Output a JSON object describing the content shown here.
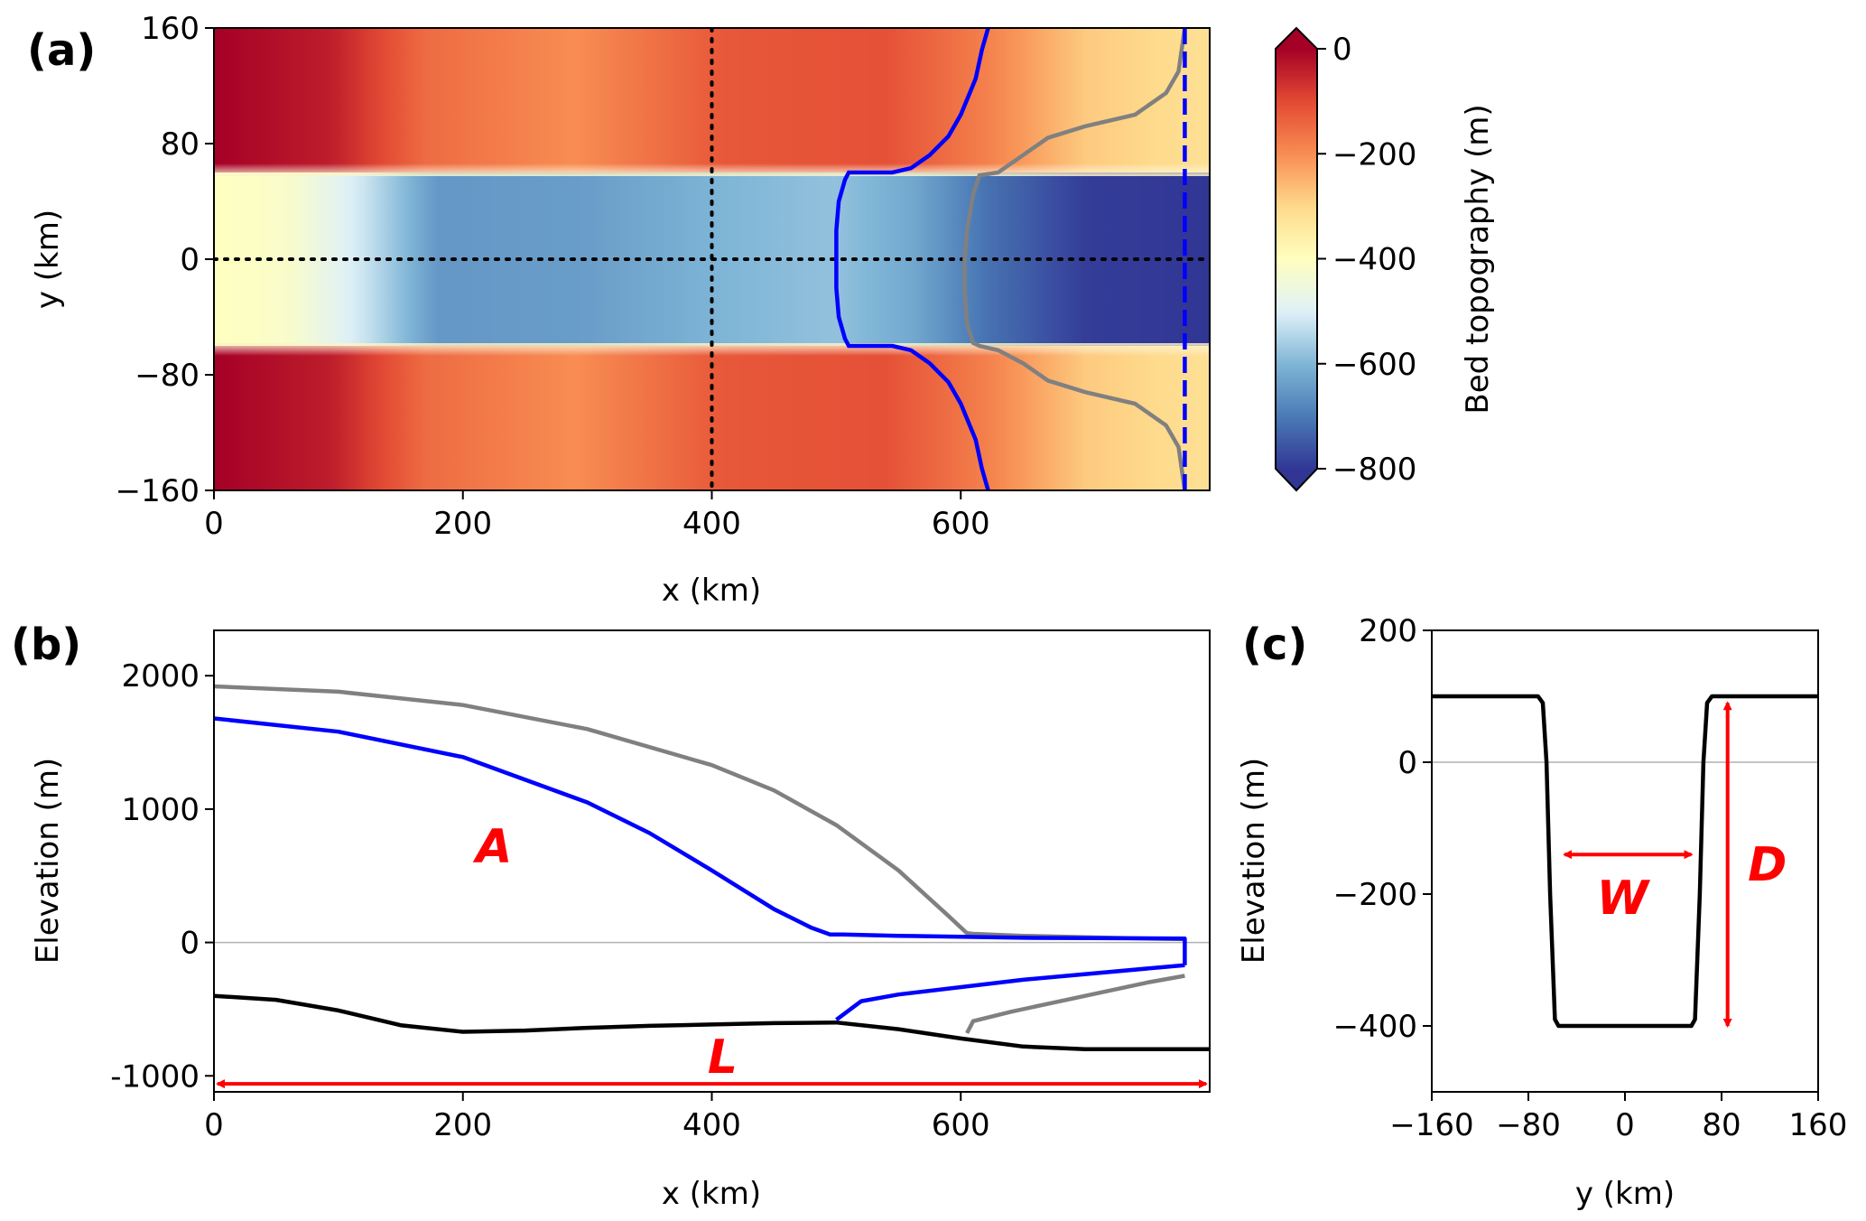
{
  "colorscale": {
    "stops": [
      {
        "v": 0,
        "c": "#a50026"
      },
      {
        "v": -100,
        "c": "#e34a33"
      },
      {
        "v": -200,
        "c": "#f88d52"
      },
      {
        "v": -300,
        "c": "#fed98b"
      },
      {
        "v": -400,
        "c": "#ffffbf"
      },
      {
        "v": -500,
        "c": "#dff1f8"
      },
      {
        "v": -600,
        "c": "#7fb5d6"
      },
      {
        "v": -700,
        "c": "#4a7ab5"
      },
      {
        "v": -800,
        "c": "#313695"
      }
    ],
    "ticks": [
      "0",
      "−200",
      "−400",
      "−600",
      "−800"
    ],
    "tick_values": [
      0,
      -200,
      -400,
      -600,
      -800
    ],
    "label": "Bed topography (m)",
    "range": [
      -800,
      0
    ]
  },
  "chart_data": [
    {
      "panel_label": "(a)",
      "type": "heatmap",
      "xlabel": "x (km)",
      "ylabel": "y (km)",
      "xlim": [
        0,
        800
      ],
      "ylim": [
        -160,
        160
      ],
      "xticks": [
        "0",
        "200",
        "400",
        "600"
      ],
      "xtick_values": [
        0,
        200,
        400,
        600
      ],
      "yticks": [
        "160",
        "80",
        "0",
        "−80",
        "−160"
      ],
      "ytick_values": [
        160,
        80,
        0,
        -80,
        -160
      ],
      "trough_half_width": 60,
      "side_bed": {
        "x": [
          0,
          95,
          170,
          290,
          410,
          540,
          620,
          700,
          800
        ],
        "z": [
          0,
          -40,
          -150,
          -200,
          -120,
          -110,
          -180,
          -280,
          -320
        ]
      },
      "trough_bed": {
        "x": [
          0,
          60,
          120,
          180,
          300,
          410,
          500,
          560,
          620,
          700,
          800
        ],
        "z": [
          -400,
          -420,
          -520,
          -650,
          -640,
          -600,
          -580,
          -620,
          -710,
          -790,
          -800
        ]
      },
      "blue_line": {
        "x": [
          622,
          617,
          612,
          600,
          590,
          575,
          560,
          545,
          520,
          510,
          507,
          502,
          500,
          500,
          500,
          502,
          507,
          510,
          520,
          545,
          560,
          575,
          590,
          600,
          612,
          617,
          622
        ],
        "y": [
          160,
          145,
          125,
          100,
          85,
          72,
          63,
          60,
          60,
          60,
          55,
          40,
          20,
          0,
          -20,
          -40,
          -55,
          -60,
          -60,
          -60,
          -63,
          -72,
          -85,
          -100,
          -125,
          -145,
          -160
        ]
      },
      "gray_line": {
        "x": [
          780,
          775,
          765,
          740,
          700,
          670,
          650,
          630,
          615,
          610,
          605,
          603,
          603,
          605,
          610,
          615,
          630,
          650,
          670,
          700,
          740,
          765,
          775,
          780
        ],
        "y": [
          160,
          130,
          115,
          100,
          92,
          84,
          72,
          60,
          58,
          45,
          20,
          0,
          -20,
          -45,
          -58,
          -60,
          -63,
          -72,
          -84,
          -92,
          -100,
          -115,
          -130,
          -160
        ]
      },
      "dashed_blue_x": 780,
      "dotted_x": 400,
      "dotted_y": 0
    },
    {
      "panel_label": "(b)",
      "type": "line",
      "xlabel": "x (km)",
      "ylabel": "Elevation (m)",
      "xlim": [
        0,
        800
      ],
      "ylim": [
        -1120,
        2340
      ],
      "xticks": [
        "0",
        "200",
        "400",
        "600"
      ],
      "xtick_values": [
        0,
        200,
        400,
        600
      ],
      "yticks": [
        "2000",
        "1000",
        "0",
        "-1000"
      ],
      "ytick_values": [
        2000,
        1000,
        0,
        -1000
      ],
      "series": [
        {
          "color": "#000000",
          "x": [
            0,
            50,
            100,
            150,
            200,
            250,
            300,
            350,
            400,
            450,
            500,
            550,
            600,
            650,
            700,
            750,
            800
          ],
          "y": [
            -400,
            -430,
            -510,
            -620,
            -670,
            -660,
            -640,
            -625,
            -615,
            -605,
            -600,
            -650,
            -720,
            -780,
            -800,
            -800,
            -800
          ]
        },
        {
          "color": "#808080",
          "x": [
            0,
            100,
            200,
            300,
            400,
            450,
            500,
            550,
            590,
            605,
            610,
            650,
            700,
            750,
            780
          ],
          "y": [
            1920,
            1880,
            1780,
            1600,
            1330,
            1140,
            880,
            540,
            200,
            70,
            65,
            50,
            40,
            30,
            25
          ]
        },
        {
          "color": "#808080",
          "x": [
            605,
            610,
            640,
            700,
            750,
            780
          ],
          "y": [
            -680,
            -590,
            -520,
            -400,
            -300,
            -250
          ]
        },
        {
          "color": "#0000ff",
          "x": [
            0,
            100,
            200,
            300,
            350,
            400,
            450,
            480,
            495,
            505,
            550,
            650,
            780,
            780,
            780
          ],
          "y": [
            1680,
            1580,
            1390,
            1050,
            820,
            540,
            250,
            110,
            60,
            60,
            50,
            35,
            30,
            0,
            -170
          ]
        },
        {
          "color": "#0000ff",
          "x": [
            500,
            520,
            550,
            650,
            780
          ],
          "y": [
            -580,
            -440,
            -390,
            -280,
            -170
          ]
        }
      ],
      "arrow_L": {
        "x": [
          0,
          800
        ],
        "y": -1060,
        "label": "L"
      },
      "label_A": {
        "x": 225,
        "y": 600,
        "text": "A"
      }
    },
    {
      "panel_label": "(c)",
      "type": "line",
      "xlabel": "y (km)",
      "ylabel": "Elevation (m)",
      "xlim": [
        -160,
        160
      ],
      "ylim": [
        -500,
        200
      ],
      "xticks": [
        "−160",
        "−80",
        "0",
        "80",
        "160"
      ],
      "xtick_values": [
        -160,
        -80,
        0,
        80,
        160
      ],
      "yticks": [
        "200",
        "0",
        "−200",
        "−400"
      ],
      "ytick_values": [
        200,
        0,
        -200,
        -400
      ],
      "series": [
        {
          "color": "#000000",
          "x": [
            -160,
            -72,
            -68,
            -65,
            -62,
            -58,
            -55,
            55,
            58,
            62,
            65,
            68,
            72,
            160
          ],
          "y": [
            100,
            100,
            90,
            0,
            -200,
            -390,
            -400,
            -400,
            -390,
            -200,
            0,
            90,
            100,
            100
          ]
        }
      ],
      "arrow_W": {
        "x": [
          -50,
          55
        ],
        "y": -140,
        "label": "W"
      },
      "arrow_D": {
        "x": 85,
        "y": [
          90,
          -400
        ],
        "label": "D"
      }
    }
  ]
}
